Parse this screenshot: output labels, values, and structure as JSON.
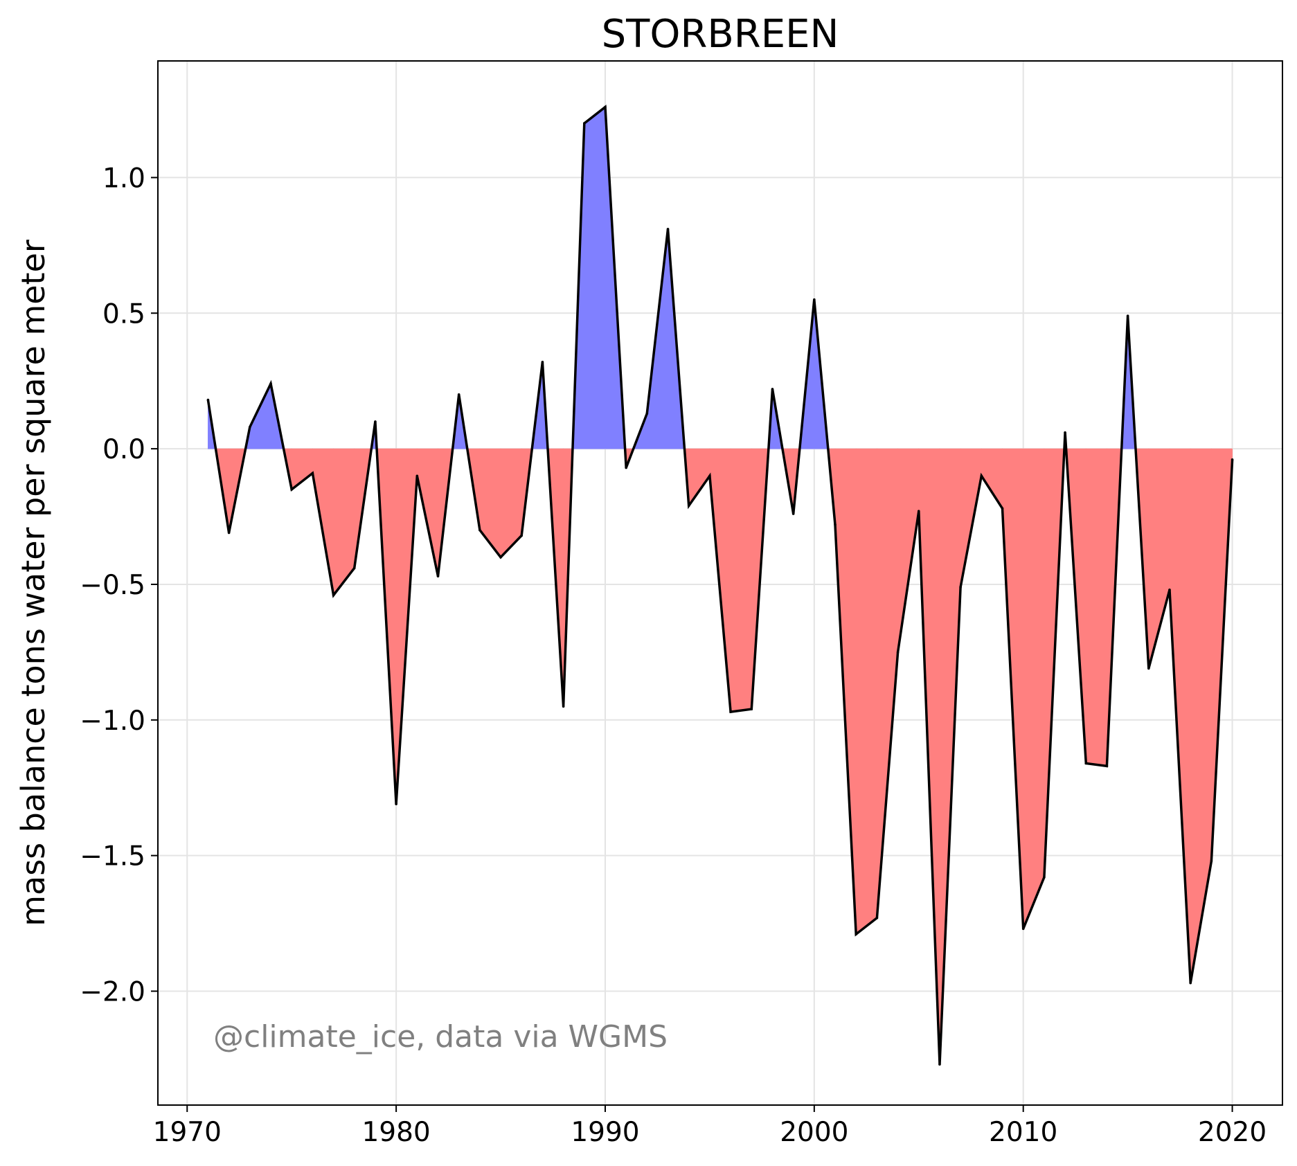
{
  "chart_data": {
    "type": "area",
    "title": "STORBREEN",
    "xlabel": "",
    "ylabel": "mass balance tons water per square meter",
    "annotation": "@climate_ice, data via WGMS",
    "xlim": [
      1968.6,
      2022.4
    ],
    "ylim": [
      -2.42,
      1.43
    ],
    "x_ticks": [
      1970,
      1980,
      1990,
      2000,
      2010,
      2020
    ],
    "y_ticks": [
      1.0,
      0.5,
      0.0,
      -0.5,
      -1.0,
      -1.5,
      -2.0
    ],
    "y_tick_labels": [
      "1.0",
      "0.5",
      "0.0",
      "−0.5",
      "−1.0",
      "−1.5",
      "−2.0"
    ],
    "grid": true,
    "positive_color": "#8080ff",
    "negative_color": "#ff8080",
    "line_color": "#000000",
    "series": [
      {
        "x": [
          1971,
          1972,
          1973,
          1974,
          1975,
          1976,
          1977,
          1978,
          1979,
          1980,
          1981,
          1982,
          1983,
          1984,
          1985,
          1986,
          1987,
          1988,
          1989,
          1990,
          1991,
          1992,
          1993,
          1994,
          1995,
          1996,
          1997,
          1998,
          1999,
          2000,
          2001,
          2002,
          2003,
          2004,
          2005,
          2006,
          2007,
          2008,
          2009,
          2010,
          2011,
          2012,
          2013,
          2014,
          2015,
          2016,
          2017,
          2018,
          2019,
          2020
        ],
        "y": [
          0.18,
          -0.31,
          0.08,
          0.24,
          -0.15,
          -0.09,
          -0.54,
          -0.44,
          0.1,
          -1.31,
          -0.1,
          -0.47,
          0.2,
          -0.3,
          -0.4,
          -0.32,
          0.32,
          -0.95,
          1.2,
          1.26,
          -0.07,
          0.13,
          0.81,
          -0.21,
          -0.1,
          -0.97,
          -0.96,
          0.22,
          -0.24,
          0.55,
          -0.28,
          -1.79,
          -1.73,
          -0.75,
          -0.23,
          -2.27,
          -0.51,
          -0.1,
          -0.22,
          -1.77,
          -1.58,
          0.06,
          -1.16,
          -1.17,
          0.49,
          -0.81,
          -0.52,
          -1.97,
          -1.52,
          -0.04
        ]
      }
    ]
  }
}
